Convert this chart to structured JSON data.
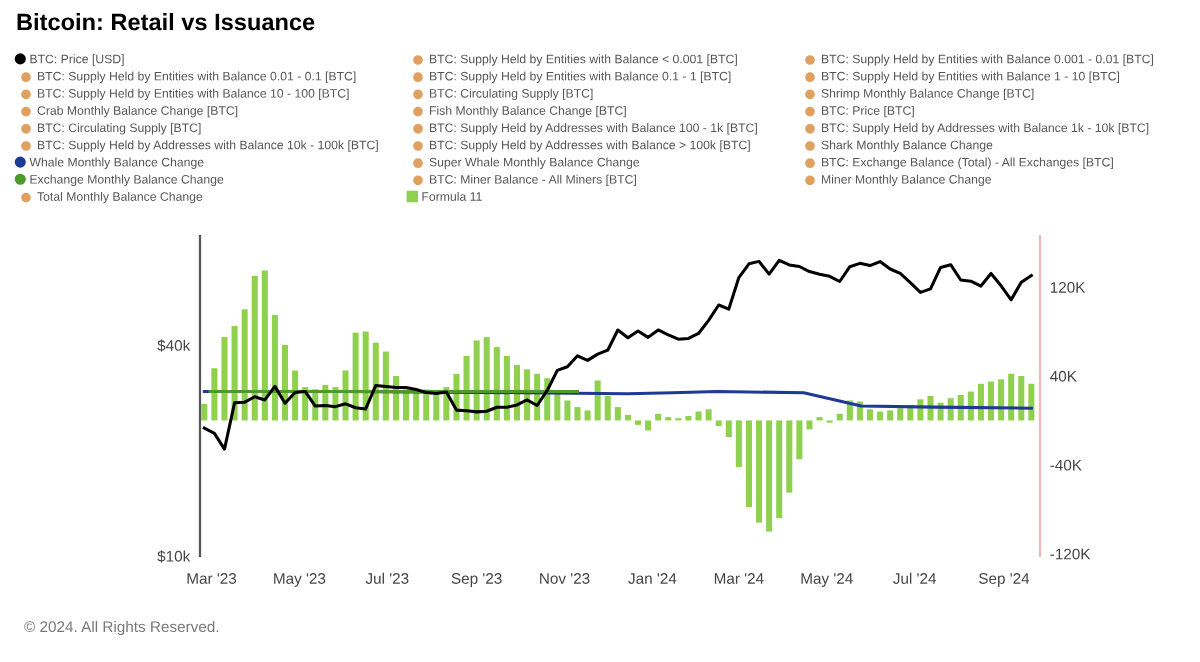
{
  "chart_data": {
    "type": "bar",
    "title": "Bitcoin: Retail vs Issuance",
    "xlim": [
      "2023-02-21",
      "2024-09-26"
    ],
    "xticks": [
      {
        "value": "2023-03-01",
        "label": "Mar '23"
      },
      {
        "value": "2023-05-01",
        "label": "May '23"
      },
      {
        "value": "2023-07-01",
        "label": "Jul '23"
      },
      {
        "value": "2023-09-01",
        "label": "Sep '23"
      },
      {
        "value": "2023-11-01",
        "label": "Nov '23"
      },
      {
        "value": "2024-01-01",
        "label": "Jan '24"
      },
      {
        "value": "2024-03-01",
        "label": "Mar '24"
      },
      {
        "value": "2024-05-01",
        "label": "May '24"
      },
      {
        "value": "2024-07-01",
        "label": "Jul '24"
      },
      {
        "value": "2024-09-01",
        "label": "Sep '24"
      }
    ],
    "log": true,
    "ylim": [
      10000,
      82000
    ],
    "yticks": [
      {
        "value": 10000,
        "label": "$10k"
      },
      {
        "value": 40000,
        "label": "$40k"
      }
    ],
    "y2lim": [
      -122,
      166
    ],
    "y2ticks": [
      {
        "value": 120,
        "label": "120K"
      },
      {
        "value": 40,
        "label": "40K"
      },
      {
        "value": -40,
        "label": "-40K"
      },
      {
        "value": -120,
        "label": "-120K"
      }
    ],
    "grid": false,
    "legend": "top",
    "series": [
      {
        "name": "BTC: Price [USD]",
        "type": "line",
        "axis": "y",
        "color": "#000000",
        "x": [
          "2023-02-24",
          "2023-03-03",
          "2023-03-10",
          "2023-03-17",
          "2023-03-24",
          "2023-03-31",
          "2023-04-07",
          "2023-04-14",
          "2023-04-21",
          "2023-04-28",
          "2023-05-05",
          "2023-05-12",
          "2023-05-19",
          "2023-05-26",
          "2023-06-02",
          "2023-06-09",
          "2023-06-16",
          "2023-06-23",
          "2023-06-30",
          "2023-07-07",
          "2023-07-14",
          "2023-07-21",
          "2023-07-28",
          "2023-08-04",
          "2023-08-11",
          "2023-08-18",
          "2023-08-25",
          "2023-09-01",
          "2023-09-08",
          "2023-09-15",
          "2023-09-22",
          "2023-09-29",
          "2023-10-06",
          "2023-10-13",
          "2023-10-20",
          "2023-10-27",
          "2023-11-03",
          "2023-11-10",
          "2023-11-17",
          "2023-11-24",
          "2023-12-01",
          "2023-12-08",
          "2023-12-15",
          "2023-12-22",
          "2023-12-29",
          "2024-01-05",
          "2024-01-12",
          "2024-01-19",
          "2024-01-26",
          "2024-02-02",
          "2024-02-09",
          "2024-02-16",
          "2024-02-23",
          "2024-03-01",
          "2024-03-08",
          "2024-03-15",
          "2024-03-22",
          "2024-03-29",
          "2024-04-05",
          "2024-04-12",
          "2024-04-19",
          "2024-04-26",
          "2024-05-03",
          "2024-05-10",
          "2024-05-17",
          "2024-05-24",
          "2024-05-31",
          "2024-06-07",
          "2024-06-14",
          "2024-06-21",
          "2024-06-28",
          "2024-07-05",
          "2024-07-12",
          "2024-07-19",
          "2024-07-26",
          "2024-08-02",
          "2024-08-09",
          "2024-08-16",
          "2024-08-23",
          "2024-08-30",
          "2024-09-06",
          "2024-09-13",
          "2024-09-20"
        ],
        "values": [
          23200,
          22400,
          20200,
          27400,
          27500,
          28500,
          27900,
          30500,
          27300,
          29300,
          29500,
          26800,
          26900,
          26700,
          27200,
          26500,
          26300,
          30700,
          30500,
          30300,
          30300,
          29900,
          29300,
          29100,
          29400,
          26100,
          26000,
          25800,
          25900,
          26600,
          26600,
          27000,
          27900,
          26900,
          29700,
          33900,
          34700,
          37300,
          36200,
          37700,
          38700,
          44200,
          42000,
          43900,
          42100,
          44200,
          42800,
          41600,
          41800,
          43200,
          47100,
          52100,
          50700,
          62400,
          68300,
          69400,
          63800,
          69900,
          67800,
          67100,
          64900,
          63800,
          62900,
          60800,
          67000,
          68500,
          67500,
          69300,
          66000,
          64100,
          60300,
          56600,
          57900,
          66700,
          67900,
          61400,
          60900,
          59000,
          64100,
          59100,
          53900,
          60500,
          63200
        ]
      },
      {
        "name": "Whale Monthly Balance Change",
        "type": "line",
        "axis": "y2",
        "color": "#1f3a93",
        "x": [
          "2023-02-24",
          "2023-06-01",
          "2023-10-01",
          "2023-12-15",
          "2024-01-15",
          "2024-02-15",
          "2024-04-15",
          "2024-05-25",
          "2024-07-15",
          "2024-09-20"
        ],
        "values": [
          26,
          26,
          25,
          24,
          25,
          26,
          25,
          13,
          12,
          11
        ]
      },
      {
        "name": "Exchange Monthly Balance Change",
        "type": "line",
        "axis": "y2",
        "color": "#4c9a2a",
        "x": [
          "2023-02-28",
          "2023-11-10"
        ],
        "values": [
          26,
          26
        ]
      },
      {
        "name": "Formula 11",
        "axis": "y2",
        "color": "#8fd14f",
        "x": [
          "2023-02-24",
          "2023-03-03",
          "2023-03-10",
          "2023-03-17",
          "2023-03-24",
          "2023-03-31",
          "2023-04-07",
          "2023-04-14",
          "2023-04-21",
          "2023-04-28",
          "2023-05-05",
          "2023-05-12",
          "2023-05-19",
          "2023-05-26",
          "2023-06-02",
          "2023-06-09",
          "2023-06-16",
          "2023-06-23",
          "2023-06-30",
          "2023-07-07",
          "2023-07-14",
          "2023-07-21",
          "2023-07-28",
          "2023-08-04",
          "2023-08-11",
          "2023-08-18",
          "2023-08-25",
          "2023-09-01",
          "2023-09-08",
          "2023-09-15",
          "2023-09-22",
          "2023-09-29",
          "2023-10-06",
          "2023-10-13",
          "2023-10-20",
          "2023-10-27",
          "2023-11-03",
          "2023-11-10",
          "2023-11-17",
          "2023-11-24",
          "2023-12-01",
          "2023-12-08",
          "2023-12-15",
          "2023-12-22",
          "2023-12-29",
          "2024-01-05",
          "2024-01-12",
          "2024-01-19",
          "2024-01-26",
          "2024-02-02",
          "2024-02-09",
          "2024-02-16",
          "2024-02-23",
          "2024-03-01",
          "2024-03-08",
          "2024-03-15",
          "2024-03-22",
          "2024-03-29",
          "2024-04-05",
          "2024-04-12",
          "2024-04-19",
          "2024-04-26",
          "2024-05-03",
          "2024-05-10",
          "2024-05-17",
          "2024-05-24",
          "2024-05-31",
          "2024-06-07",
          "2024-06-14",
          "2024-06-21",
          "2024-06-28",
          "2024-07-05",
          "2024-07-12",
          "2024-07-19",
          "2024-07-26",
          "2024-08-02",
          "2024-08-09",
          "2024-08-16",
          "2024-08-23",
          "2024-08-30",
          "2024-09-06",
          "2024-09-13",
          "2024-09-20"
        ],
        "values": [
          15,
          47,
          75,
          85,
          100,
          130,
          135,
          95,
          68,
          45,
          30,
          28,
          32,
          30,
          45,
          79,
          80,
          70,
          62,
          40,
          28,
          25,
          28,
          27,
          30,
          42,
          58,
          72,
          75,
          66,
          58,
          50,
          46,
          42,
          38,
          26,
          18,
          12,
          9,
          36,
          22,
          12,
          5,
          -4,
          -9,
          6,
          3,
          2,
          4,
          8,
          10,
          -5,
          -15,
          -42,
          -78,
          -92,
          -100,
          -88,
          -65,
          -35,
          -8,
          3,
          -2,
          6,
          18,
          17,
          10,
          8,
          9,
          11,
          14,
          19,
          22,
          16,
          20,
          23,
          26,
          33,
          35,
          37,
          42,
          40,
          33
        ]
      }
    ],
    "annotations": [
      "BTC: Supply Held by Entities with Balance 0.01 - 0.1 [BTC]",
      "BTC: Supply Held by Entities with Balance 10 - 100 [BTC]",
      "Crab Monthly Balance Change [BTC]",
      "BTC: Circulating Supply [BTC]",
      "BTC: Supply Held by Addresses with Balance 10k - 100k [BTC]",
      "Total Monthly Balance Change",
      "BTC: Supply Held by Entities with Balance < 0.001 [BTC]",
      "BTC: Supply Held by Entities with Balance 0.1 - 1 [BTC]",
      "BTC: Circulating Supply [BTC]",
      "Fish Monthly Balance Change [BTC]",
      "BTC: Supply Held by Addresses with Balance 100 - 1k [BTC]",
      "BTC: Supply Held by Addresses with Balance > 100k [BTC]",
      "Super Whale Monthly Balance Change",
      "BTC: Miner Balance - All Miners [BTC]",
      "BTC: Supply Held by Entities with Balance 0.001 - 0.01 [BTC]",
      "BTC: Supply Held by Entities with Balance 1 - 10 [BTC]",
      "Shrimp Monthly Balance Change [BTC]",
      "BTC: Price [BTC]",
      "BTC: Supply Held by Addresses with Balance 1k - 10k [BTC]",
      "Shark Monthly Balance Change",
      "BTC: Exchange Balance (Total) - All Exchanges [BTC]",
      "Miner Monthly Balance Change",
      "© 2024. All Rights Reserved."
    ]
  }
}
